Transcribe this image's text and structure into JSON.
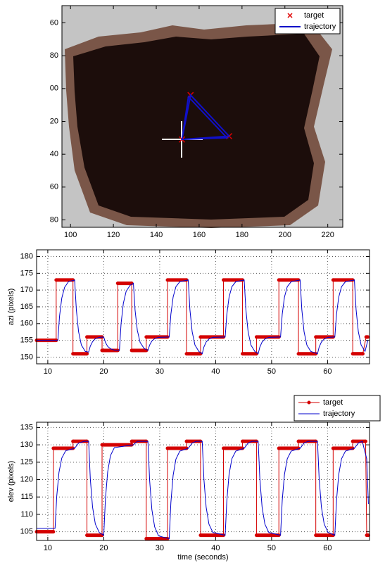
{
  "chart_data": [
    {
      "type": "scatter",
      "xlim": [
        96,
        227
      ],
      "xticks": [
        100,
        120,
        140,
        160,
        180,
        200,
        220
      ],
      "ylim": [
        184.5,
        49.5
      ],
      "yticks": [
        60,
        80,
        {
          "value": 100,
          "label": "00"
        },
        {
          "value": 120,
          "label": "20"
        },
        {
          "value": 140,
          "label": "40"
        },
        {
          "value": 160,
          "label": "60"
        },
        {
          "value": 180,
          "label": "80"
        }
      ],
      "grid": false,
      "legend": "northeast",
      "series": [
        {
          "name": "target",
          "color": "#e00000",
          "marker": "x",
          "linestyle": "none",
          "x": [
            156,
            174,
            152
          ],
          "values": [
            104,
            129,
            131
          ]
        },
        {
          "name": "trajectory",
          "color": "#1010c8",
          "marker": "none",
          "linewidth": 2,
          "x": [
            152,
            156,
            174,
            152,
            155,
            173,
            152
          ],
          "values": [
            131,
            104,
            129,
            131,
            105,
            130,
            131
          ]
        }
      ]
    },
    {
      "type": "line",
      "ylabel": "azi (pixels)",
      "xlim": [
        8,
        67.5
      ],
      "xticks": [
        10,
        20,
        30,
        40,
        50,
        60
      ],
      "ylim": [
        148,
        182
      ],
      "yticks": [
        150,
        155,
        160,
        165,
        170,
        175,
        180
      ],
      "grid": true,
      "series": [
        {
          "color": "#d40000",
          "marker": ".",
          "linewidth": 1,
          "x": [
            8,
            11.5,
            11.5,
            14.5,
            14.5,
            17,
            17,
            19.7,
            19.7,
            22.5,
            22.5,
            25,
            25,
            27.6,
            27.6,
            31.4,
            31.4,
            34.8,
            34.8,
            37.3,
            37.3,
            41.4,
            41.4,
            44.8,
            44.8,
            47.3,
            47.3,
            51.3,
            51.3,
            54.8,
            54.8,
            57.9,
            57.9,
            61,
            61,
            64.5,
            64.5,
            66.3,
            66.9,
            67.2
          ],
          "values": [
            155,
            155,
            173,
            173,
            151,
            151,
            156,
            156,
            152,
            152,
            172,
            172,
            152,
            152,
            156,
            156,
            173,
            173,
            151,
            151,
            156,
            156,
            173,
            173,
            151,
            151,
            156,
            156,
            173,
            173,
            151,
            151,
            156,
            156,
            173,
            173,
            151,
            151,
            156,
            156
          ]
        },
        {
          "color": "#0000cc",
          "marker": "none",
          "linewidth": 1,
          "x": [
            8,
            11.8,
            12.1,
            12.5,
            13,
            13.7,
            14.8,
            15.1,
            15.5,
            16,
            16.7,
            17.3,
            17.6,
            18,
            18.5,
            19.2,
            20,
            20.3,
            20.7,
            21.2,
            21.9,
            22.8,
            23.1,
            23.5,
            24,
            24.7,
            25.3,
            25.6,
            26,
            26.5,
            27.2,
            27.9,
            28.2,
            28.6,
            29.1,
            29.8,
            31.7,
            32,
            32.4,
            32.9,
            33.6,
            35.1,
            35.4,
            35.8,
            36.3,
            37,
            37.6,
            37.9,
            38.3,
            38.8,
            39.5,
            41.7,
            42,
            42.4,
            42.9,
            43.6,
            45.1,
            45.4,
            45.8,
            46.3,
            47,
            47.6,
            47.9,
            48.3,
            48.8,
            49.5,
            51.6,
            51.9,
            52.3,
            52.8,
            53.5,
            55.1,
            55.4,
            55.8,
            56.3,
            57,
            58.2,
            58.5,
            58.9,
            59.4,
            60.1,
            61.3,
            61.6,
            62,
            62.5,
            63.2,
            64.8,
            65.1,
            65.5,
            66,
            66.7,
            67.2
          ],
          "values": [
            155,
            155,
            162.2,
            167.6,
            170.8,
            172.5,
            173,
            164.2,
            157.6,
            153.6,
            151.7,
            151.5,
            153.3,
            154.6,
            155.5,
            155.9,
            156,
            154.4,
            153.2,
            152.5,
            152.1,
            152,
            160,
            166,
            169.6,
            171.4,
            172,
            164,
            158,
            154.4,
            152.6,
            152,
            153.6,
            154.8,
            155.5,
            155.9,
            156,
            162.8,
            167.9,
            171,
            172.5,
            173,
            164.2,
            157.6,
            153.6,
            151.7,
            151,
            153,
            154.5,
            155.4,
            155.9,
            156,
            162.8,
            167.9,
            171,
            172.5,
            173,
            164.2,
            157.6,
            153.6,
            151.7,
            151,
            153,
            154.5,
            155.4,
            155.9,
            156,
            162.8,
            167.9,
            171,
            172.5,
            173,
            164.2,
            157.6,
            153.6,
            151.7,
            151,
            153,
            154.5,
            155.4,
            155.9,
            156,
            162.8,
            167.9,
            171,
            172.5,
            173,
            164.2,
            157.6,
            153.6,
            151.7,
            155
          ]
        }
      ]
    },
    {
      "type": "line",
      "ylabel": "elev (pixels)",
      "xlabel": "time (seconds)",
      "xlim": [
        8,
        67.5
      ],
      "xticks": [
        10,
        20,
        30,
        40,
        50,
        60
      ],
      "ylim": [
        102.5,
        136.5
      ],
      "yticks": [
        105,
        110,
        115,
        120,
        125,
        130,
        135
      ],
      "grid": true,
      "legend": "northeastoutside",
      "series": [
        {
          "name": "target",
          "color": "#d40000",
          "marker": ".",
          "linewidth": 1,
          "x": [
            8,
            11,
            11,
            14.5,
            14.5,
            17,
            17,
            19.7,
            19.7,
            25,
            25,
            27.6,
            27.6,
            31.4,
            31.4,
            34.8,
            34.8,
            37.3,
            37.3,
            41.4,
            41.4,
            44.8,
            44.8,
            47.3,
            47.3,
            51.3,
            51.3,
            54.8,
            54.8,
            57.9,
            57.9,
            61,
            61,
            64.5,
            64.5,
            66.8,
            67,
            67.3
          ],
          "values": [
            105,
            105,
            129,
            129,
            131,
            131,
            104,
            104,
            130,
            130,
            131,
            131,
            103,
            103,
            129,
            129,
            131,
            131,
            104,
            104,
            129,
            129,
            131,
            131,
            104,
            104,
            129,
            129,
            131,
            131,
            104,
            104,
            129,
            129,
            131,
            131,
            104,
            104
          ]
        },
        {
          "name": "trajectory",
          "color": "#0000cc",
          "marker": "none",
          "linewidth": 1,
          "x": [
            8,
            11.3,
            11.6,
            12,
            12.5,
            13.2,
            14.8,
            15.5,
            16.5,
            17.3,
            17.6,
            18,
            18.5,
            19.2,
            20,
            20.3,
            20.7,
            21.2,
            21.9,
            25.3,
            26,
            27.9,
            28.2,
            28.6,
            29.1,
            29.8,
            31.7,
            32,
            32.4,
            32.9,
            33.6,
            35.1,
            35.8,
            36.5,
            37.6,
            37.9,
            38.3,
            38.8,
            39.5,
            41.7,
            42,
            42.4,
            42.9,
            43.6,
            45.1,
            45.8,
            46.5,
            47.6,
            47.9,
            48.3,
            48.8,
            49.5,
            51.6,
            51.9,
            52.3,
            52.8,
            53.5,
            55.1,
            55.8,
            56.5,
            58.2,
            58.5,
            58.9,
            59.4,
            60.1,
            61.3,
            61.6,
            62,
            62.5,
            63.2,
            64.8,
            65.5,
            66.2,
            67,
            67.3
          ],
          "values": [
            106,
            106,
            115.2,
            122.1,
            126.2,
            128.3,
            129,
            130.5,
            131,
            131,
            120.2,
            112.1,
            107.2,
            104.8,
            104,
            114.4,
            122.2,
            126.9,
            129.2,
            130,
            131,
            131,
            119.8,
            111.4,
            106.4,
            103.8,
            103,
            113.4,
            121.2,
            125.9,
            128.2,
            129,
            130.5,
            131,
            131,
            120.2,
            112.1,
            107.2,
            104.8,
            104,
            114,
            121.5,
            126,
            128.2,
            129,
            130.5,
            131,
            131,
            120.2,
            112.1,
            107.2,
            104.8,
            104,
            114,
            121.5,
            126,
            128.2,
            129,
            130.5,
            131,
            131,
            120.2,
            112.1,
            107.2,
            104.8,
            104,
            114,
            121.5,
            126,
            128.2,
            129,
            130.5,
            131,
            126,
            113
          ]
        }
      ]
    }
  ]
}
